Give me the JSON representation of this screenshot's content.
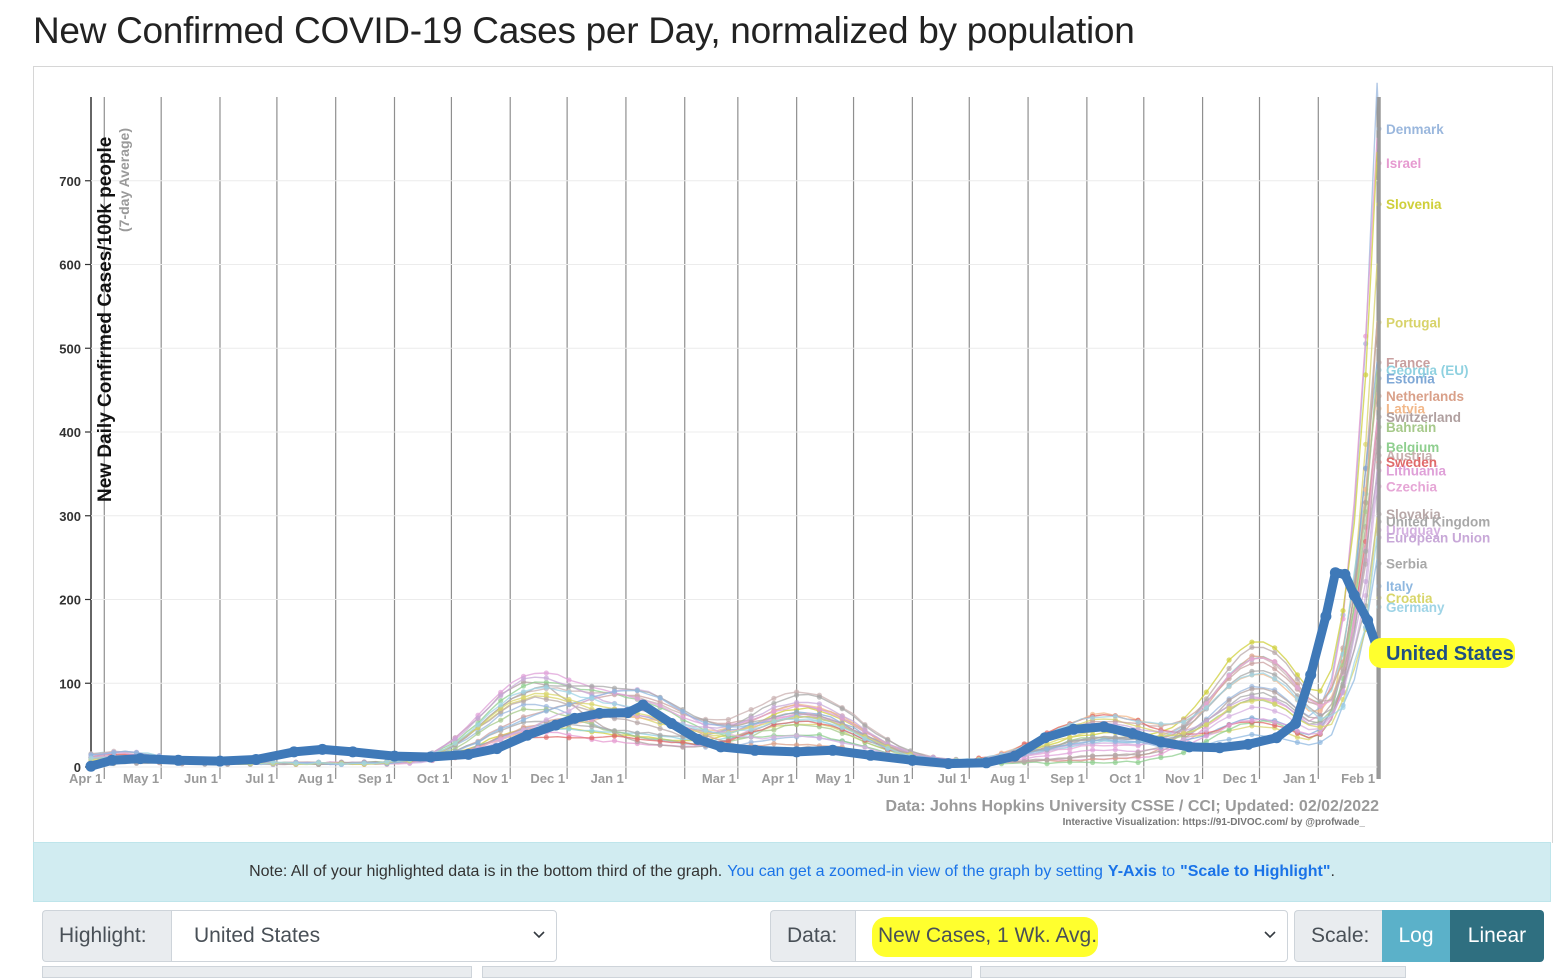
{
  "page": {
    "title": "New Confirmed COVID-19 Cases per Day, normalized by population"
  },
  "chart_data": {
    "type": "line",
    "ylabel": "New Daily Confirmed Cases/100k people",
    "ylabel_sub": "(7-day Average)",
    "ylim": [
      0,
      800
    ],
    "yticks": [
      0,
      100,
      200,
      300,
      400,
      500,
      600,
      700
    ],
    "xlim": [
      "2020-03-25",
      "2022-02-02"
    ],
    "xticks": [
      {
        "label": "Apr 1",
        "date": "2020-04-01"
      },
      {
        "label": "May 1",
        "date": "2020-05-01"
      },
      {
        "label": "Jun 1",
        "date": "2020-06-01"
      },
      {
        "label": "Jul 1",
        "date": "2020-07-01"
      },
      {
        "label": "Aug 1",
        "date": "2020-08-01"
      },
      {
        "label": "Sep 1",
        "date": "2020-09-01"
      },
      {
        "label": "Oct 1",
        "date": "2020-10-01"
      },
      {
        "label": "Nov 1",
        "date": "2020-11-01"
      },
      {
        "label": "Dec 1",
        "date": "2020-12-01"
      },
      {
        "label": "Jan 1",
        "date": "2021-01-01"
      },
      {
        "label": "",
        "date": "2021-02-01"
      },
      {
        "label": "Mar 1",
        "date": "2021-03-01"
      },
      {
        "label": "Apr 1",
        "date": "2021-04-01"
      },
      {
        "label": "May 1",
        "date": "2021-05-01"
      },
      {
        "label": "Jun 1",
        "date": "2021-06-01"
      },
      {
        "label": "Jul 1",
        "date": "2021-07-01"
      },
      {
        "label": "Aug 1",
        "date": "2021-08-01"
      },
      {
        "label": "Sep 1",
        "date": "2021-09-01"
      },
      {
        "label": "Oct 1",
        "date": "2021-10-01"
      },
      {
        "label": "Nov 1",
        "date": "2021-11-01"
      },
      {
        "label": "Dec 1",
        "date": "2021-12-01"
      },
      {
        "label": "Jan 1",
        "date": "2022-01-01"
      },
      {
        "label": "Feb 1",
        "date": "2022-02-01"
      }
    ],
    "highlighted": {
      "name": "United States",
      "color": "#3f79b8",
      "label_highlight": "#ffff2e",
      "points": [
        [
          "2020-03-25",
          1
        ],
        [
          "2020-04-05",
          8
        ],
        [
          "2020-04-20",
          10
        ],
        [
          "2020-05-10",
          8
        ],
        [
          "2020-06-01",
          7
        ],
        [
          "2020-06-20",
          9
        ],
        [
          "2020-07-10",
          18
        ],
        [
          "2020-07-25",
          21
        ],
        [
          "2020-08-10",
          18
        ],
        [
          "2020-09-01",
          13
        ],
        [
          "2020-09-20",
          12
        ],
        [
          "2020-10-10",
          15
        ],
        [
          "2020-10-25",
          22
        ],
        [
          "2020-11-10",
          38
        ],
        [
          "2020-11-25",
          50
        ],
        [
          "2020-12-05",
          58
        ],
        [
          "2020-12-18",
          64
        ],
        [
          "2021-01-02",
          65
        ],
        [
          "2021-01-10",
          74
        ],
        [
          "2021-01-25",
          52
        ],
        [
          "2021-02-08",
          33
        ],
        [
          "2021-02-20",
          24
        ],
        [
          "2021-03-10",
          20
        ],
        [
          "2021-04-01",
          18
        ],
        [
          "2021-04-20",
          20
        ],
        [
          "2021-05-10",
          14
        ],
        [
          "2021-06-01",
          8
        ],
        [
          "2021-06-20",
          4
        ],
        [
          "2021-07-10",
          5
        ],
        [
          "2021-07-25",
          13
        ],
        [
          "2021-08-10",
          35
        ],
        [
          "2021-08-25",
          45
        ],
        [
          "2021-09-10",
          48
        ],
        [
          "2021-09-25",
          40
        ],
        [
          "2021-10-10",
          30
        ],
        [
          "2021-10-25",
          24
        ],
        [
          "2021-11-10",
          23
        ],
        [
          "2021-11-25",
          27
        ],
        [
          "2021-12-10",
          35
        ],
        [
          "2021-12-20",
          52
        ],
        [
          "2021-12-28",
          110
        ],
        [
          "2022-01-05",
          180
        ],
        [
          "2022-01-10",
          232
        ],
        [
          "2022-01-15",
          230
        ],
        [
          "2022-01-20",
          205
        ],
        [
          "2022-01-27",
          175
        ],
        [
          "2022-02-02",
          135
        ]
      ]
    },
    "countries": [
      {
        "name": "Denmark",
        "end": 762,
        "color": "#9ab7dd"
      },
      {
        "name": "Israel",
        "end": 721,
        "color": "#e69ad0"
      },
      {
        "name": "Slovenia",
        "end": 672,
        "color": "#cfcf3a"
      },
      {
        "name": "Portugal",
        "end": 531,
        "color": "#d8d36a"
      },
      {
        "name": "France",
        "end": 483,
        "color": "#c9a0a0"
      },
      {
        "name": "Georgia (EU)",
        "end": 474,
        "color": "#8fd1e0"
      },
      {
        "name": "Estonia",
        "end": 464,
        "color": "#7fa8d6"
      },
      {
        "name": "Netherlands",
        "end": 443,
        "color": "#d9a089"
      },
      {
        "name": "Latvia",
        "end": 428,
        "color": "#f2b88a"
      },
      {
        "name": "Switzerland",
        "end": 418,
        "color": "#b0a0a0"
      },
      {
        "name": "Bahrain",
        "end": 406,
        "color": "#a6c98a"
      },
      {
        "name": "Belgium",
        "end": 382,
        "color": "#8fcf8f"
      },
      {
        "name": "Austria",
        "end": 372,
        "color": "#c9b0b0"
      },
      {
        "name": "Sweden",
        "end": 364,
        "color": "#e06a6a"
      },
      {
        "name": "Lithuania",
        "end": 354,
        "color": "#dfa0d8"
      },
      {
        "name": "Czechia",
        "end": 335,
        "color": "#e6a6d6"
      },
      {
        "name": "Slovakia",
        "end": 302,
        "color": "#b8a8a8"
      },
      {
        "name": "United Kingdom",
        "end": 293,
        "color": "#a8a8a8"
      },
      {
        "name": "Uruguay",
        "end": 283,
        "color": "#d4b0e0"
      },
      {
        "name": "European Union",
        "end": 274,
        "color": "#c8a8d8"
      },
      {
        "name": "Serbia",
        "end": 243,
        "color": "#a8a8a8"
      },
      {
        "name": "Italy",
        "end": 216,
        "color": "#8fb8e0"
      },
      {
        "name": "Croatia",
        "end": 202,
        "color": "#d8d66a"
      },
      {
        "name": "Germany",
        "end": 191,
        "color": "#9fd4e6"
      }
    ],
    "source": "Data: Johns Hopkins University CSSE / CCI; Updated: 02/02/2022",
    "credit": "Interactive Visualization: https://91-DIVOC.com/ by @profwade_"
  },
  "note": {
    "text": "Note: All of your highlighted data is in the bottom third of the graph.",
    "link": "You can get a zoomed-in view of the graph by setting",
    "yaxis": "Y-Axis",
    "to": "to",
    "scale": "\"Scale to Highlight\"",
    "tail": "."
  },
  "controls": {
    "highlight_label": "Highlight:",
    "highlight_value": "United States",
    "data_label": "Data:",
    "data_value": "New Cases, 1 Wk. Avg.",
    "scale_label": "Scale:",
    "log_label": "Log",
    "linear_label": "Linear"
  }
}
